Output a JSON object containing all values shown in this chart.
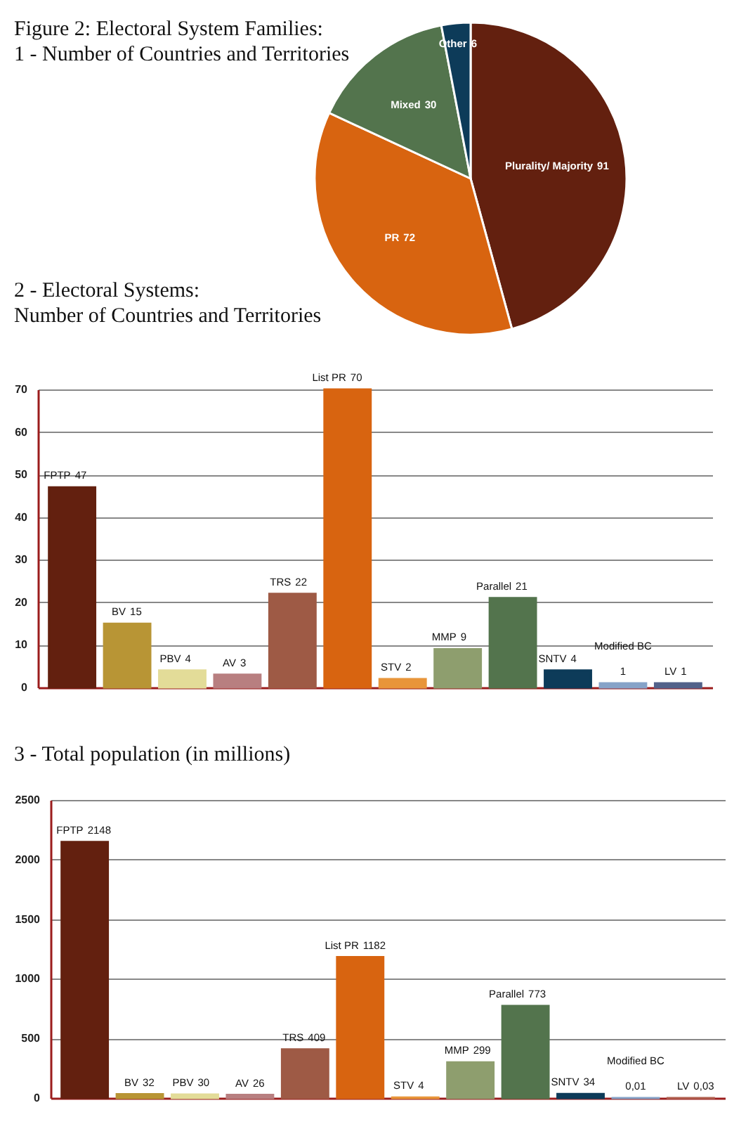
{
  "chart_data": [
    {
      "type": "pie",
      "title": "Figure 2: Electoral System Families:",
      "subtitle": "1 - Number of Countries and Territories",
      "categories": [
        "Plurality/ Majority",
        "PR",
        "Mixed",
        "Other"
      ],
      "values": [
        91,
        72,
        30,
        6
      ],
      "colors": [
        "#63200f",
        "#d86410",
        "#53744d",
        "#0d3b59"
      ],
      "data_labels": true
    },
    {
      "type": "bar",
      "title": "2 - Electoral Systems:",
      "subtitle": "Number of Countries and Territories",
      "categories": [
        "FPTP",
        "BV",
        "PBV",
        "AV",
        "TRS",
        "List PR",
        "STV",
        "MMP",
        "Parallel",
        "SNTV",
        "Modified BC",
        "LV"
      ],
      "values": [
        47,
        15,
        4,
        3,
        22,
        70,
        2,
        9,
        21,
        4,
        1,
        1
      ],
      "value_labels": [
        "47",
        "15",
        "4",
        "3",
        "22",
        "70",
        "2",
        "9",
        "21",
        "4",
        "1",
        "1"
      ],
      "colors": [
        "#63200f",
        "#b89535",
        "#e3dc98",
        "#b87f80",
        "#9e5a45",
        "#d86410",
        "#e8953a",
        "#8e9e6e",
        "#53744d",
        "#0d3b59",
        "#86a3c8",
        "#52628a"
      ],
      "ylim": [
        0,
        70
      ],
      "yticks": [
        0,
        10,
        20,
        30,
        40,
        50,
        60,
        70
      ],
      "grid": "y",
      "tick_labels": "y"
    },
    {
      "type": "bar",
      "title": "3 - Total population (in millions)",
      "categories": [
        "FPTP",
        "BV",
        "PBV",
        "AV",
        "TRS",
        "List PR",
        "STV",
        "MMP",
        "Parallel",
        "SNTV",
        "Modified BC",
        "LV"
      ],
      "values": [
        2148,
        32,
        30,
        26,
        409,
        1182,
        4,
        299,
        773,
        34,
        0.01,
        0.03
      ],
      "value_labels": [
        "2148",
        "32",
        "30",
        "26",
        "409",
        "1182",
        "4",
        "299",
        "773",
        "34",
        "0,01",
        "0,03"
      ],
      "colors": [
        "#63200f",
        "#b89535",
        "#e3dc98",
        "#b87f80",
        "#9e5a45",
        "#d86410",
        "#e8953a",
        "#8e9e6e",
        "#53744d",
        "#0d3b59",
        "#86a3c8",
        "#b0604f"
      ],
      "ylim": [
        0,
        2500
      ],
      "yticks": [
        0,
        500,
        1000,
        1500,
        2000,
        2500
      ],
      "grid": "y",
      "tick_labels": "y"
    }
  ]
}
